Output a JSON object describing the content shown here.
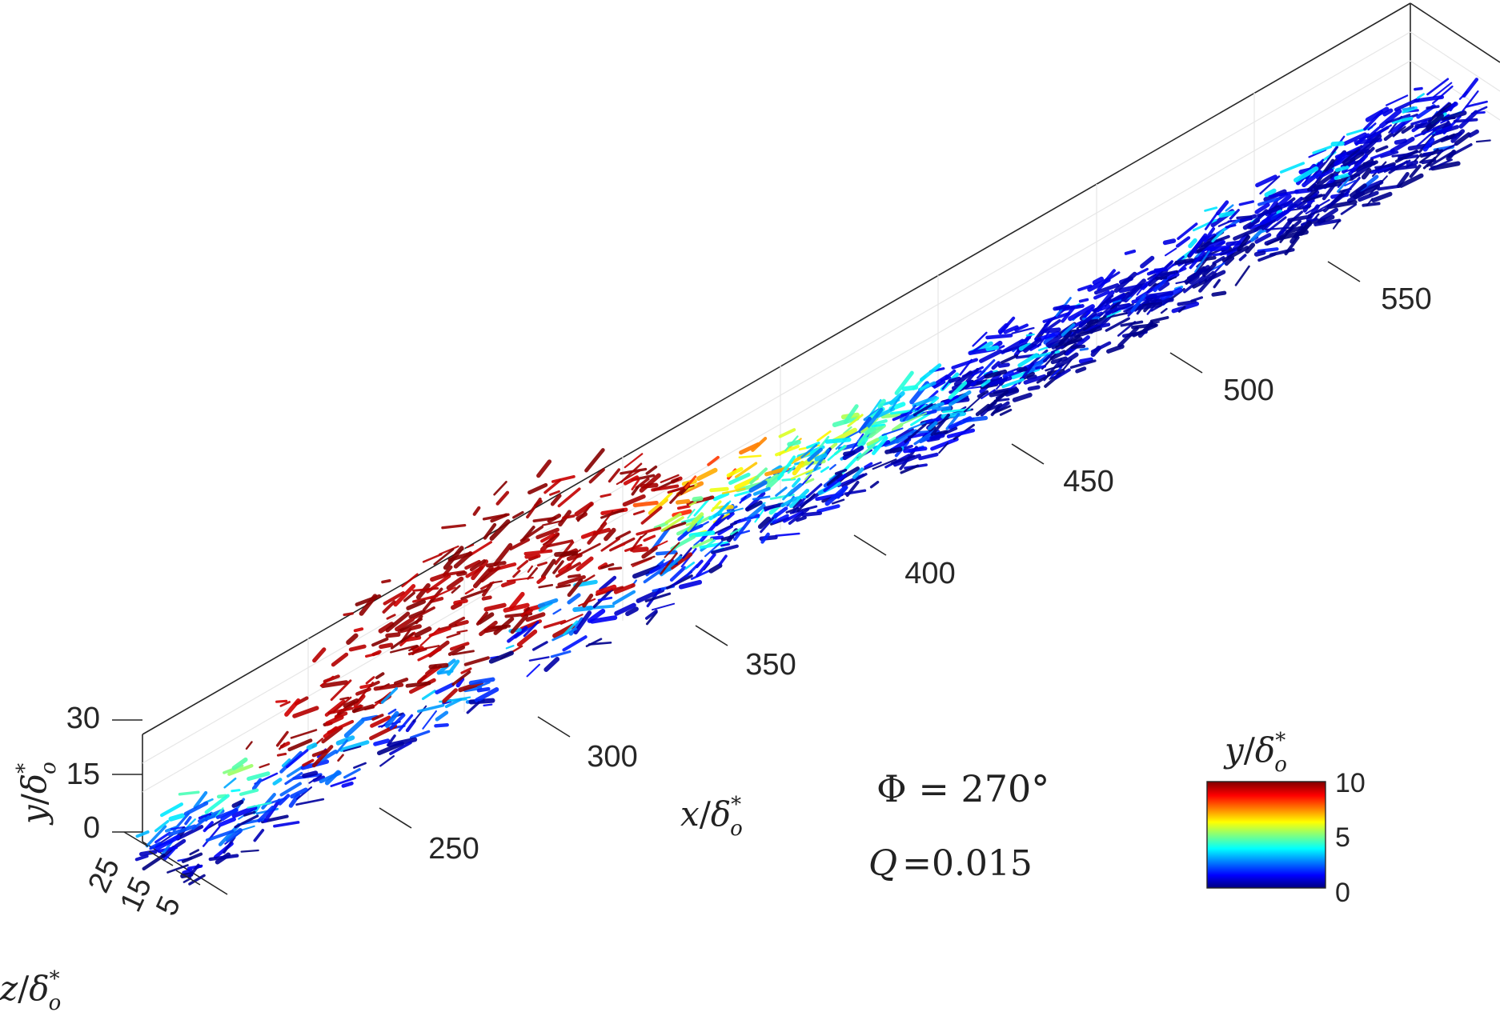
{
  "figure": {
    "x_axis": {
      "label_var": "x",
      "label_sep": "/",
      "label_delta": "δ",
      "label_sup": "*",
      "label_sub": "o",
      "ticks": [
        "250",
        "300",
        "350",
        "400",
        "450",
        "500",
        "550"
      ]
    },
    "y_axis": {
      "label_var": "y",
      "label_sep": "/",
      "label_delta": "δ",
      "label_sup": "*",
      "label_sub": "o",
      "ticks": [
        "0",
        "15",
        "30"
      ]
    },
    "z_axis": {
      "label_var": "z",
      "label_sep": "/",
      "label_delta": "δ",
      "label_sup": "*",
      "label_sub": "o",
      "ticks": [
        "5",
        "15",
        "25"
      ]
    },
    "annotations": {
      "phase": "Φ = 270°",
      "q_var": "Q",
      "q_value": "=0.015"
    },
    "colorbar": {
      "title_var": "y",
      "title_sep": "/",
      "title_delta": "δ",
      "title_sup": "*",
      "title_sub": "o",
      "ticks": [
        "0",
        "5",
        "10"
      ],
      "colormap": [
        "#00007f",
        "#0000ff",
        "#00ffff",
        "#ffff00",
        "#ff0000",
        "#7f0000"
      ]
    }
  }
}
